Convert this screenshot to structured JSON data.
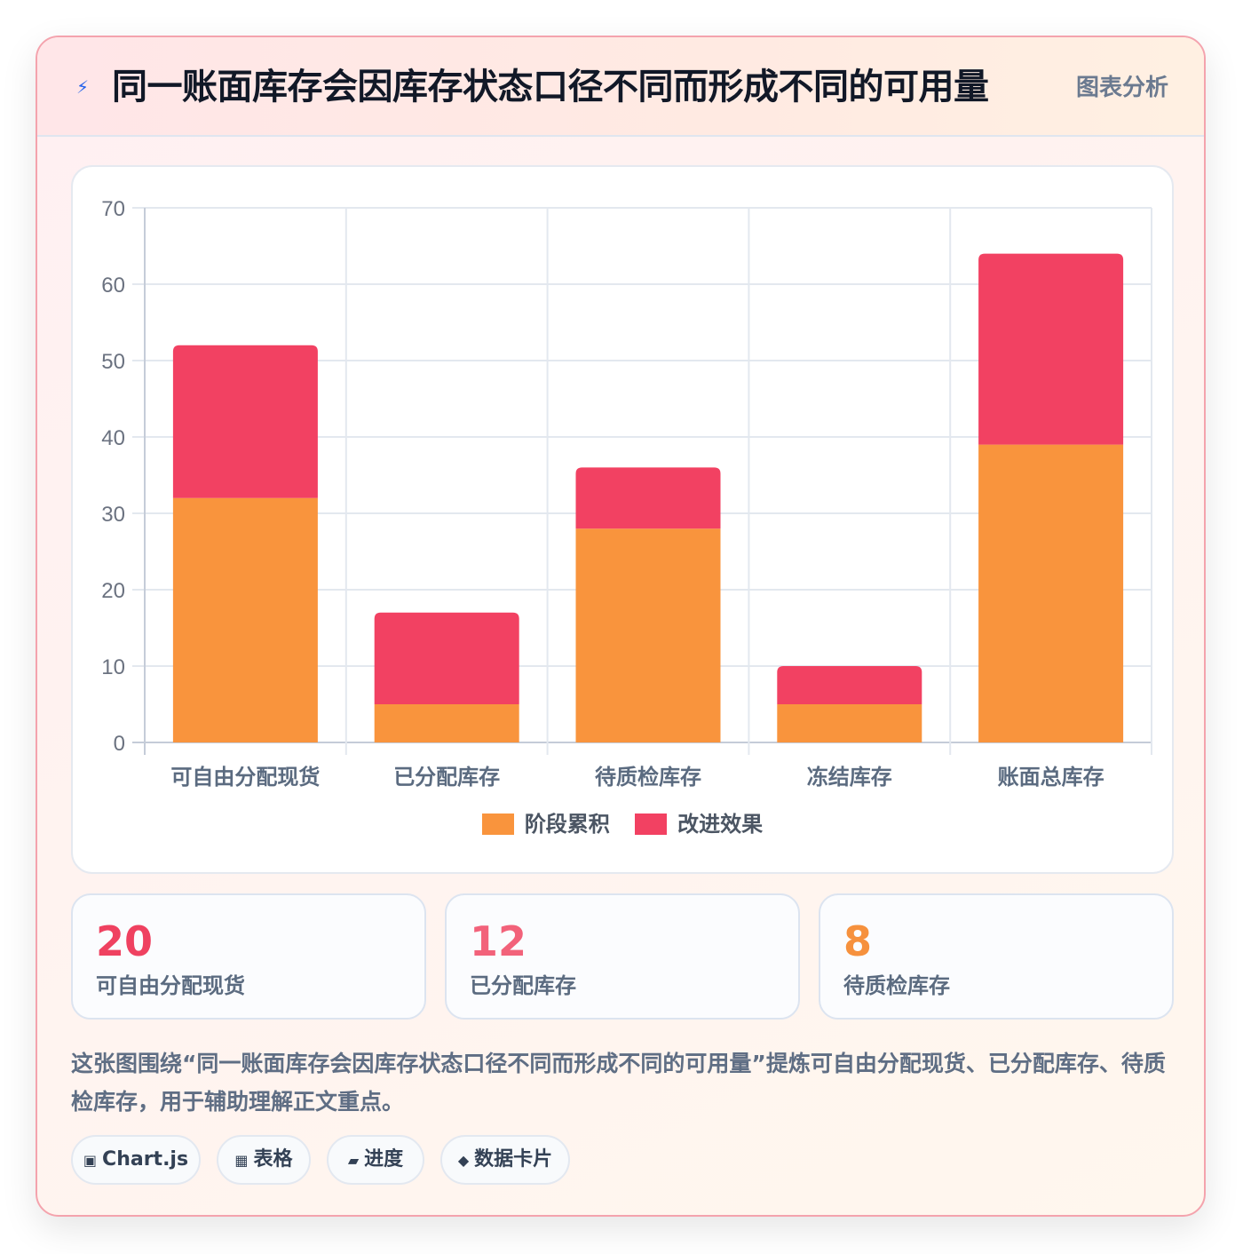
{
  "header": {
    "icon": "lightning-icon",
    "title": "同一账面库存会因库存状态口径不同而形成不同的可用量",
    "tag": "图表分析"
  },
  "chart_data": {
    "type": "bar",
    "stacked": true,
    "categories": [
      "可自由分配现货",
      "已分配库存",
      "待质检库存",
      "冻结库存",
      "账面总库存"
    ],
    "series": [
      {
        "name": "阶段累积",
        "color": "#f9943d",
        "values": [
          32,
          5,
          28,
          5,
          39
        ]
      },
      {
        "name": "改进效果",
        "color": "#f24162",
        "values": [
          20,
          12,
          8,
          5,
          25
        ]
      }
    ],
    "ylim": [
      0,
      70
    ],
    "yticks": [
      0,
      10,
      20,
      30,
      40,
      50,
      60,
      70
    ],
    "grid": true,
    "legend_position": "bottom",
    "title": "",
    "xlabel": "",
    "ylabel": ""
  },
  "stats": [
    {
      "value": "20",
      "label": "可自由分配现货",
      "color": "#ef4160"
    },
    {
      "value": "12",
      "label": "已分配库存",
      "color": "#f2627a"
    },
    {
      "value": "8",
      "label": "待质检库存",
      "color": "#f6913d"
    }
  ],
  "description": "这张图围绕“同一账面库存会因库存状态口径不同而形成不同的可用量”提炼可自由分配现货、已分配库存、待质检库存，用于辅助理解正文重点。",
  "tags": [
    {
      "icon": "▣",
      "label": "Chart.js"
    },
    {
      "icon": "▦",
      "label": "表格"
    },
    {
      "icon": "▰",
      "label": "进度"
    },
    {
      "icon": "◆",
      "label": "数据卡片"
    }
  ]
}
